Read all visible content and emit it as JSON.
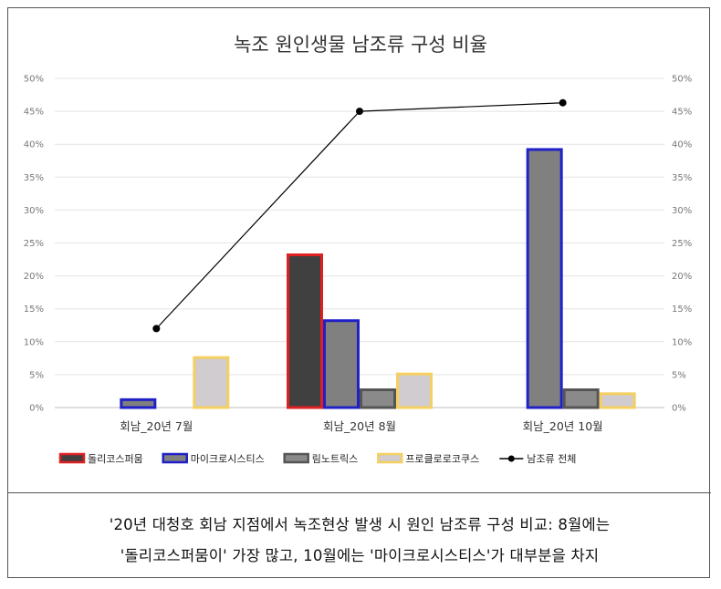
{
  "chart_data": {
    "type": "bar",
    "title": "녹조 원인생물 남조류 구성 비율",
    "categories": [
      "회남_20년 7월",
      "회남_20년 8월",
      "회남_20년 10월"
    ],
    "yticks": [
      "0%",
      "5%",
      "10%",
      "15%",
      "20%",
      "25%",
      "30%",
      "35%",
      "40%",
      "45%",
      "50%"
    ],
    "ylim": [
      0,
      50
    ],
    "grid": true,
    "legend_position": "bottom",
    "series": [
      {
        "name": "돌리코스퍼뭄",
        "type": "bar",
        "values": [
          0,
          23.2,
          0
        ],
        "fill": "#404040",
        "stroke": "#e02020"
      },
      {
        "name": "마이크로시스티스",
        "type": "bar",
        "values": [
          1.2,
          13.2,
          39.2
        ],
        "fill": "#808080",
        "stroke": "#2020c8"
      },
      {
        "name": "림노트릭스",
        "type": "bar",
        "values": [
          0,
          2.7,
          2.7
        ],
        "fill": "#8a8a8a",
        "stroke": "#555555"
      },
      {
        "name": "프로클로로코쿠스",
        "type": "bar",
        "values": [
          7.6,
          5.1,
          2.1
        ],
        "fill": "#d0ccd0",
        "stroke": "#f5d060"
      },
      {
        "name": "남조류 전체",
        "type": "line",
        "values": [
          12.0,
          45.0,
          46.3
        ],
        "stroke": "#000000"
      }
    ]
  },
  "caption": {
    "line1": "'20년 대청호 회남 지점에서 녹조현상 발생 시 원인 남조류 구성 비교: 8월에는",
    "line2": "'돌리코스퍼뭄이' 가장 많고, 10월에는 '마이크로시스티스'가 대부분을 차지"
  }
}
